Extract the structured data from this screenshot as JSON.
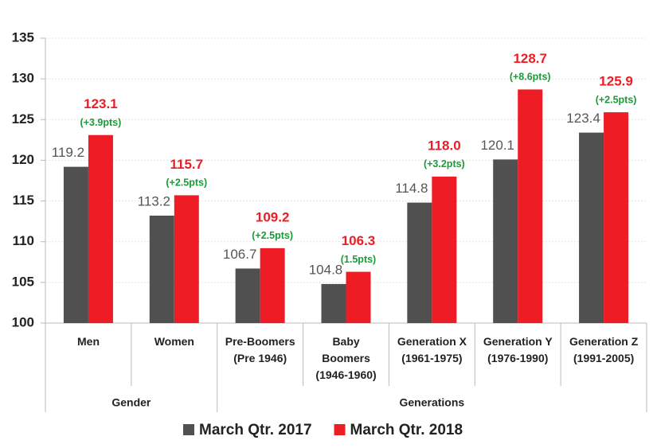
{
  "chart_data": {
    "type": "bar",
    "categories": [
      "Men",
      "Women",
      "Pre-Boomers\n(Pre 1946)",
      "Baby\nBoomers\n(1946-1960)",
      "Generation X\n(1961-1975)",
      "Generation Y\n(1976-1990)",
      "Generation Z\n(1991-2005)"
    ],
    "groups": [
      {
        "label": "Gender",
        "span": 2
      },
      {
        "label": "Generations",
        "span": 5
      }
    ],
    "series": [
      {
        "name": "March Qtr. 2017",
        "color": "#505050",
        "values": [
          119.2,
          113.2,
          106.7,
          104.8,
          114.8,
          120.1,
          123.4
        ],
        "value_labels": [
          "119.2",
          "113.2",
          "106.7",
          "104.8",
          "114.8",
          "120.1",
          "123.4"
        ]
      },
      {
        "name": "March Qtr. 2018",
        "color": "#ee1c25",
        "values": [
          123.1,
          115.7,
          109.2,
          106.3,
          118.0,
          128.7,
          125.9
        ],
        "value_labels": [
          "123.1",
          "115.7",
          "109.2",
          "106.3",
          "118.0",
          "128.7",
          "125.9"
        ]
      }
    ],
    "change_labels": [
      "(+3.9pts)",
      "(+2.5pts)",
      "(+2.5pts)",
      "(1.5pts)",
      "(+3.2pts)",
      "(+8.6pts)",
      "(+2.5pts)"
    ],
    "change_color": "#1a9a3a",
    "ylim": [
      100,
      135
    ],
    "yticks": [
      100,
      105,
      110,
      115,
      120,
      125,
      130,
      135
    ],
    "grid": true,
    "legend": "bottom"
  }
}
